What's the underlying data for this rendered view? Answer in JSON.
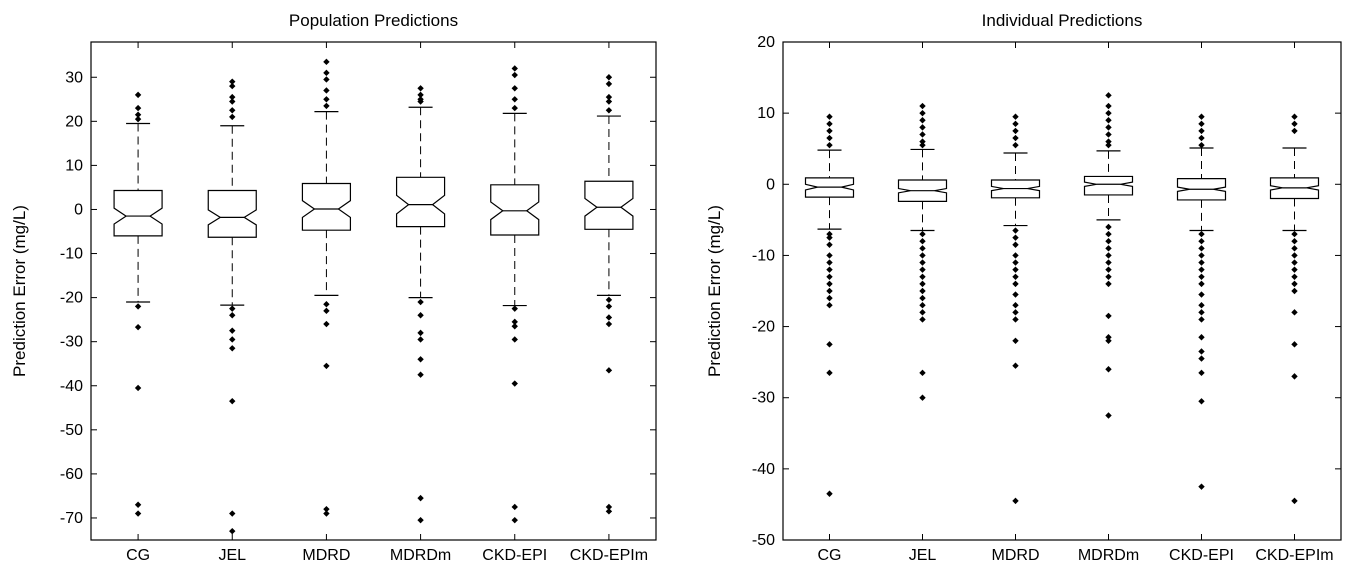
{
  "chart_data": [
    {
      "type": "boxplot",
      "title": "Population Predictions",
      "xlabel": "",
      "ylabel": "Prediction Error (mg/L)",
      "ylim": [
        -75,
        38
      ],
      "yticks": [
        30,
        20,
        10,
        0,
        -10,
        -20,
        -30,
        -40,
        -50,
        -60,
        -70
      ],
      "notched": true,
      "grid": false,
      "categories": [
        "CG",
        "JEL",
        "MDRD",
        "MDRDm",
        "CKD-EPI",
        "CKD-EPIm"
      ],
      "boxes": [
        {
          "whisker_low": -21,
          "q1": -6,
          "median": -1.5,
          "q3": 4.3,
          "whisker_high": 19.5,
          "notch": [
            -3.3,
            0.3
          ],
          "outliers": [
            26,
            23,
            21.5,
            20.5,
            -22,
            -26.7,
            -40.5,
            -67,
            -69
          ]
        },
        {
          "whisker_low": -21.7,
          "q1": -6.3,
          "median": -1.8,
          "q3": 4.3,
          "whisker_high": 19,
          "notch": [
            -3.5,
            -0.1
          ],
          "outliers": [
            29,
            28,
            25.5,
            24.5,
            22.5,
            21,
            -22.5,
            -24,
            -27.5,
            -29.5,
            -31.5,
            -43.5,
            -69,
            -73
          ]
        },
        {
          "whisker_low": -19.5,
          "q1": -4.7,
          "median": 0.1,
          "q3": 5.9,
          "whisker_high": 22.2,
          "notch": [
            -1.8,
            2.0
          ],
          "outliers": [
            33.5,
            31,
            29.5,
            27,
            25,
            23.5,
            -21.5,
            -23,
            -26,
            -35.5,
            -68,
            -69
          ]
        },
        {
          "whisker_low": -20,
          "q1": -3.9,
          "median": 1.1,
          "q3": 7.3,
          "whisker_high": 23.2,
          "notch": [
            -1.0,
            3.2
          ],
          "outliers": [
            27.5,
            26,
            25,
            24.5,
            -21,
            -24,
            -28,
            -29.5,
            -34,
            -37.5,
            -65.5,
            -70.5
          ]
        },
        {
          "whisker_low": -21.8,
          "q1": -5.8,
          "median": -0.3,
          "q3": 5.6,
          "whisker_high": 21.8,
          "notch": [
            -2.3,
            1.7
          ],
          "outliers": [
            32,
            30.5,
            27.5,
            25,
            23,
            -22.5,
            -25.5,
            -26.5,
            -29.5,
            -39.5,
            -67.5,
            -70.5
          ]
        },
        {
          "whisker_low": -19.5,
          "q1": -4.5,
          "median": 0.5,
          "q3": 6.4,
          "whisker_high": 21.2,
          "notch": [
            -1.5,
            2.5
          ],
          "outliers": [
            30,
            28.5,
            25.5,
            24.5,
            22.5,
            -20.5,
            -22,
            -24.5,
            -26,
            -36.5,
            -67.5,
            -68.5
          ]
        }
      ]
    },
    {
      "type": "boxplot",
      "title": "Individual Predictions",
      "xlabel": "",
      "ylabel": "Prediction Error (mg/L)",
      "ylim": [
        -50,
        20
      ],
      "yticks": [
        20,
        10,
        0,
        -10,
        -20,
        -30,
        -40,
        -50
      ],
      "notched": true,
      "grid": false,
      "categories": [
        "CG",
        "JEL",
        "MDRD",
        "MDRDm",
        "CKD-EPI",
        "CKD-EPIm"
      ],
      "boxes": [
        {
          "whisker_low": -6.3,
          "q1": -1.8,
          "median": -0.4,
          "q3": 0.9,
          "whisker_high": 4.8,
          "notch": [
            -0.8,
            0.0
          ],
          "outliers": [
            9.5,
            8.5,
            7.5,
            6.5,
            5.5,
            -7,
            -7.5,
            -8.5,
            -10,
            -11,
            -12,
            -13,
            -14,
            -15,
            -16,
            -17,
            -22.5,
            -26.5,
            -43.5
          ]
        },
        {
          "whisker_low": -6.5,
          "q1": -2.4,
          "median": -0.9,
          "q3": 0.6,
          "whisker_high": 4.9,
          "notch": [
            -1.2,
            -0.6
          ],
          "outliers": [
            11,
            10,
            9,
            8,
            7,
            6,
            5.5,
            -7,
            -8,
            -9,
            -10,
            -11,
            -12,
            -13,
            -14,
            -15,
            -16,
            -17,
            -18,
            -19,
            -26.5,
            -30
          ]
        },
        {
          "whisker_low": -5.8,
          "q1": -1.9,
          "median": -0.6,
          "q3": 0.6,
          "whisker_high": 4.4,
          "notch": [
            -0.9,
            -0.3
          ],
          "outliers": [
            9.5,
            8.5,
            7.5,
            6.5,
            5.5,
            -6.5,
            -7.5,
            -8.5,
            -10,
            -11,
            -12,
            -13,
            -14,
            -15.5,
            -17,
            -18,
            -19,
            -22,
            -25.5,
            -44.5
          ]
        },
        {
          "whisker_low": -5,
          "q1": -1.5,
          "median": 0.0,
          "q3": 1.1,
          "whisker_high": 4.7,
          "notch": [
            -0.3,
            0.3
          ],
          "outliers": [
            12.5,
            11,
            10,
            9,
            8,
            7,
            6,
            5.5,
            -6,
            -7,
            -8,
            -9,
            -10,
            -11,
            -12,
            -13,
            -14,
            -18.5,
            -21.5,
            -22,
            -26,
            -32.5
          ]
        },
        {
          "whisker_low": -6.5,
          "q1": -2.2,
          "median": -0.7,
          "q3": 0.8,
          "whisker_high": 5.1,
          "notch": [
            -1.0,
            -0.4
          ],
          "outliers": [
            9.5,
            8.5,
            7.5,
            6.5,
            5.5,
            -7,
            -8,
            -9,
            -10,
            -11,
            -12,
            -13,
            -14,
            -15.5,
            -17,
            -18,
            -19,
            -21.5,
            -23.5,
            -24.5,
            -26.5,
            -30.5,
            -42.5
          ]
        },
        {
          "whisker_low": -6.5,
          "q1": -2.0,
          "median": -0.5,
          "q3": 0.9,
          "whisker_high": 5.1,
          "notch": [
            -0.8,
            -0.2
          ],
          "outliers": [
            9.5,
            8.5,
            7.5,
            -7,
            -8,
            -9,
            -10,
            -11,
            -12,
            -13,
            -14,
            -15,
            -18,
            -22.5,
            -27,
            -44.5
          ]
        }
      ]
    }
  ]
}
